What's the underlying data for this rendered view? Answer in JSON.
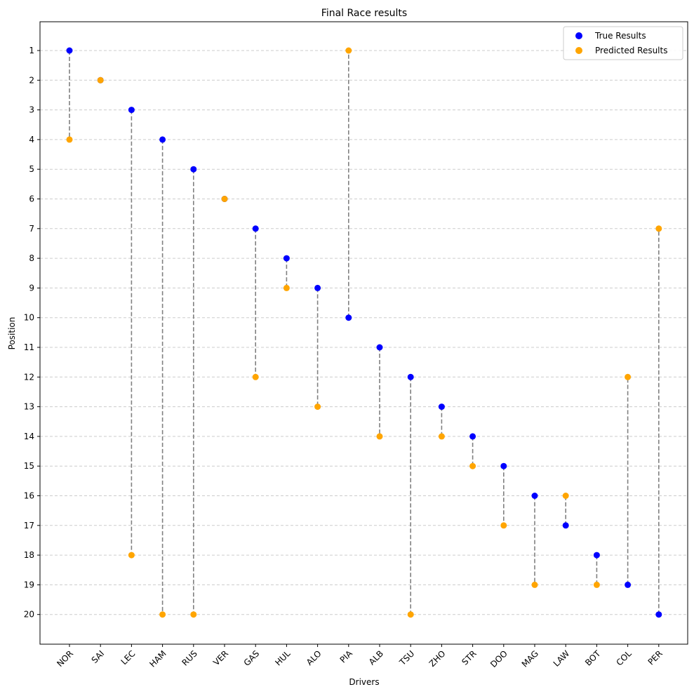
{
  "chart_data": {
    "type": "scatter",
    "title": "Final Race results",
    "xlabel": "Drivers",
    "ylabel": "Position",
    "categories": [
      "NOR",
      "SAI",
      "LEC",
      "HAM",
      "RUS",
      "VER",
      "GAS",
      "HUL",
      "ALO",
      "PIA",
      "ALB",
      "TSU",
      "ZHO",
      "STR",
      "DOO",
      "MAG",
      "LAW",
      "BOT",
      "COL",
      "PER"
    ],
    "series": [
      {
        "name": "True Results",
        "color": "#0000ff",
        "values": [
          1,
          2,
          3,
          4,
          5,
          6,
          7,
          8,
          9,
          10,
          11,
          12,
          13,
          14,
          15,
          16,
          17,
          18,
          19,
          20
        ]
      },
      {
        "name": "Predicted Results",
        "color": "#ffa500",
        "values": [
          4,
          2,
          18,
          20,
          20,
          6,
          12,
          9,
          13,
          1,
          14,
          20,
          14,
          15,
          17,
          19,
          16,
          19,
          12,
          7
        ]
      }
    ],
    "connector_color": "#808080",
    "yticks": [
      1,
      2,
      3,
      4,
      5,
      6,
      7,
      8,
      9,
      10,
      11,
      12,
      13,
      14,
      15,
      16,
      17,
      18,
      19,
      20
    ],
    "ylim": [
      21,
      0
    ],
    "y_inverted": true,
    "grid": "y-dashed",
    "legend_position": "top-right"
  }
}
